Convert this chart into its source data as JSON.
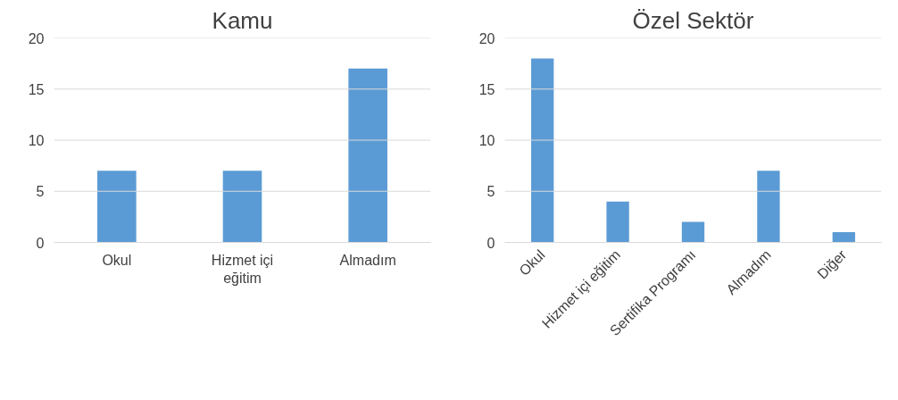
{
  "chart_data": [
    {
      "type": "bar",
      "title": "Kamu",
      "categories": [
        "Okul",
        "Hizmet içi eğitim",
        "Almadım"
      ],
      "values": [
        7,
        7,
        17
      ],
      "color": "#5b9bd5",
      "ylim": [
        0,
        20
      ],
      "yticks": [
        0,
        5,
        10,
        15,
        20
      ],
      "grid": "y"
    },
    {
      "type": "bar",
      "title": "Özel Sektör",
      "categories": [
        "Okul",
        "Hizmet içi eğitim",
        "Sertifika Programı",
        "Almadım",
        "Diğer"
      ],
      "values": [
        18,
        4,
        2,
        7,
        1
      ],
      "color": "#5b9bd5",
      "ylim": [
        0,
        20
      ],
      "yticks": [
        0,
        5,
        10,
        15,
        20
      ],
      "grid": "y"
    }
  ]
}
